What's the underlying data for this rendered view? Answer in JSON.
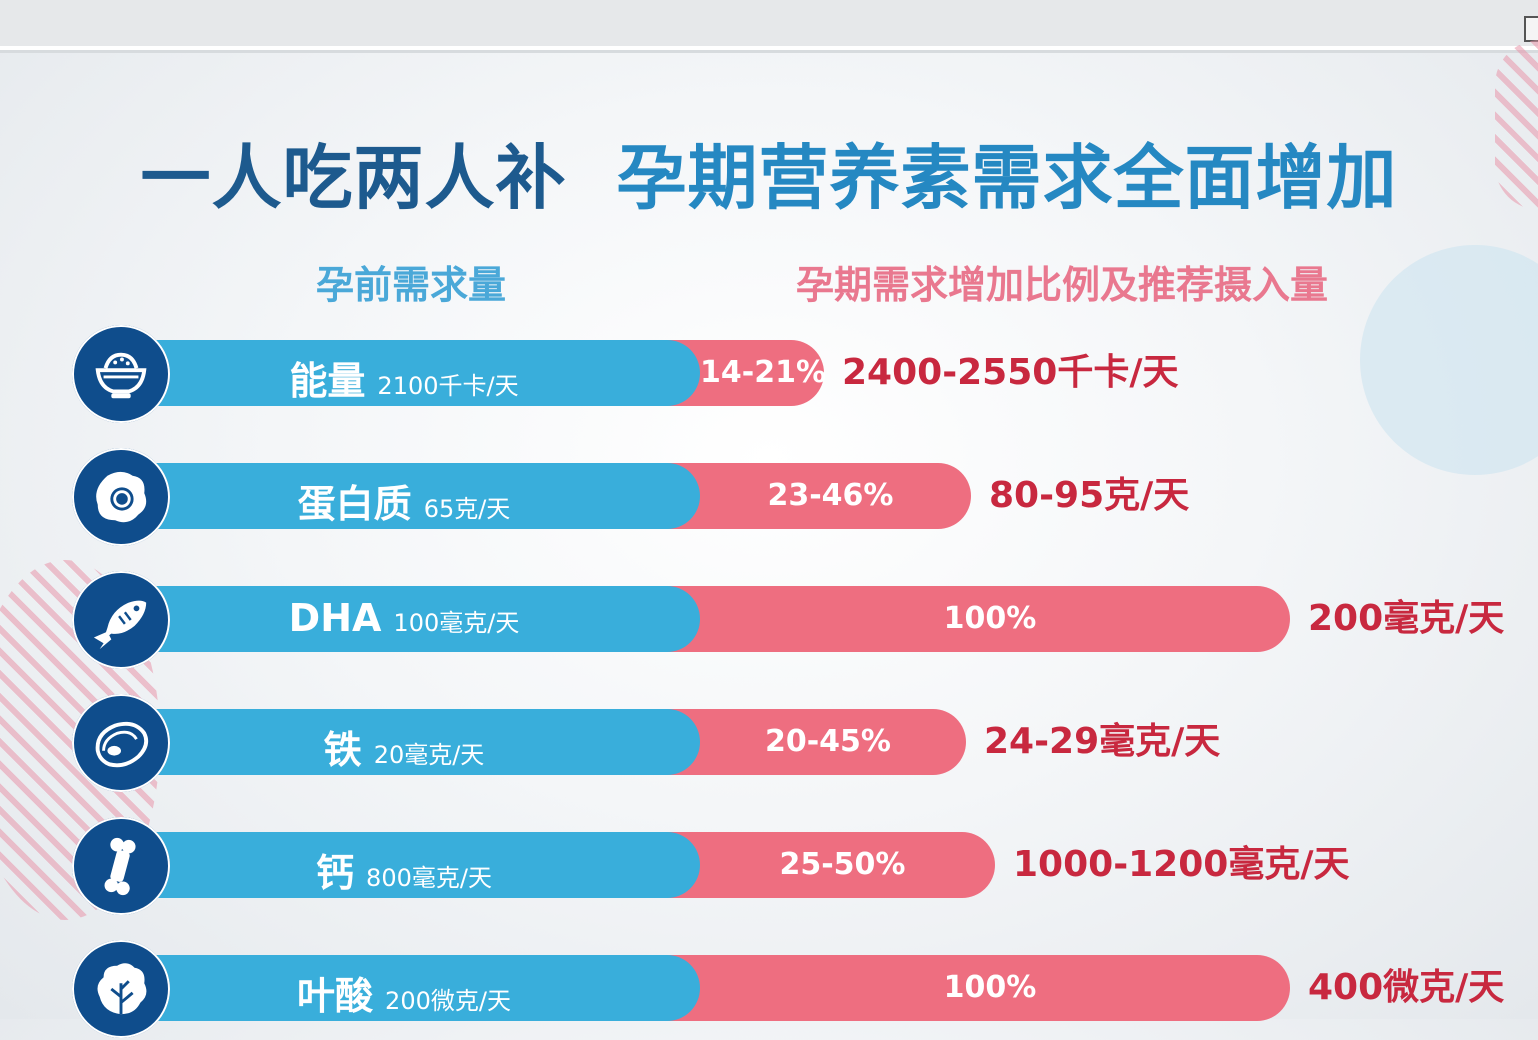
{
  "title": {
    "part1": "一人吃两人补",
    "part2": "孕期营养素需求全面增加"
  },
  "headers": {
    "left": "孕前需求量",
    "right": "孕期需求增加比例及推荐摄入量"
  },
  "colors": {
    "title_dark": "#1d5a8e",
    "title_blue": "#2588c2",
    "bar_blue": "#39aedb",
    "bar_pink": "#ee6e80",
    "icon_circle": "#0f4d8c",
    "recommended_text": "#c8283f"
  },
  "chart_data": {
    "type": "bar",
    "categories": [
      "能量",
      "蛋白质",
      "DHA",
      "铁",
      "钙",
      "叶酸"
    ],
    "pre_pregnancy": [
      "2100千卡/天",
      "65克/天",
      "100毫克/天",
      "20毫克/天",
      "800毫克/天",
      "200微克/天"
    ],
    "increase_labels": [
      "14-21%",
      "23-46%",
      "100%",
      "20-45%",
      "25-50%",
      "100%"
    ],
    "increase_upper_pct": [
      21,
      46,
      100,
      45,
      50,
      100
    ],
    "recommended": [
      "2400-2550千卡/天",
      "80-95克/天",
      "200毫克/天",
      "24-29毫克/天",
      "1000-1200毫克/天",
      "400微克/天"
    ]
  },
  "rows": [
    {
      "name": "能量",
      "base": "2100千卡/天",
      "pct": "14-21%",
      "rec": "2400-2550千卡/天",
      "icon": "rice-bowl-icon"
    },
    {
      "name": "蛋白质",
      "base": "65克/天",
      "pct": "23-46%",
      "rec": "80-95克/天",
      "icon": "egg-icon"
    },
    {
      "name": "DHA",
      "base": "100毫克/天",
      "pct": "100%",
      "rec": "200毫克/天",
      "icon": "fish-icon"
    },
    {
      "name": "铁",
      "base": "20毫克/天",
      "pct": "20-45%",
      "rec": "24-29毫克/天",
      "icon": "meat-icon"
    },
    {
      "name": "钙",
      "base": "800毫克/天",
      "pct": "25-50%",
      "rec": "1000-1200毫克/天",
      "icon": "bone-icon"
    },
    {
      "name": "叶酸",
      "base": "200微克/天",
      "pct": "100%",
      "rec": "400微克/天",
      "icon": "leafy-vegetable-icon"
    }
  ]
}
